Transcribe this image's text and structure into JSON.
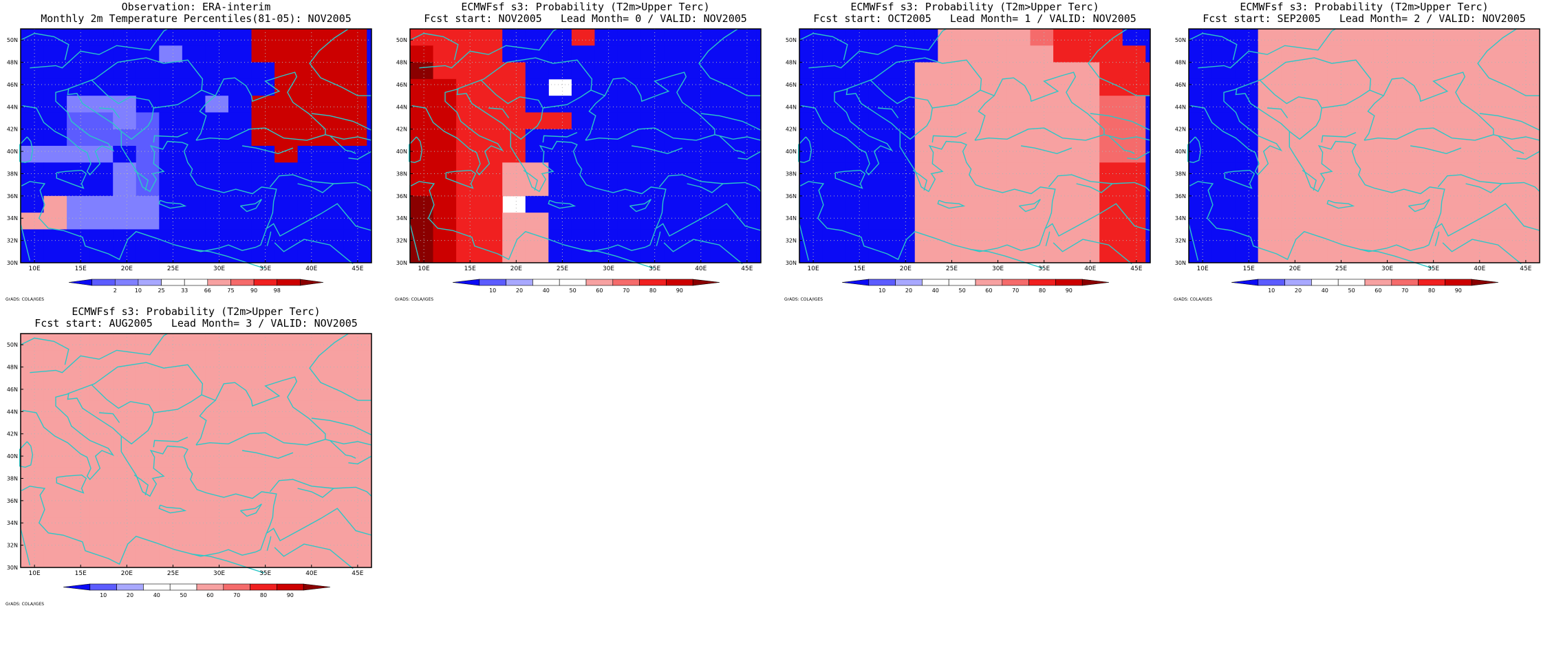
{
  "colors": {
    "coast": "#2cc7c7",
    "frame": "#000000",
    "grid": "#b5b5b5",
    "prob_palette": [
      "#0b0bf5",
      "#5c5cff",
      "#a8a8ff",
      "#ffffff",
      "#ffffff",
      "#f7a1a1",
      "#f56b6b",
      "#f02020",
      "#cc0000",
      "#8a0000"
    ],
    "obs_palette": [
      "#0b0bf5",
      "#5c5cff",
      "#8080ff",
      "#a8a8ff",
      "#ffffff",
      "#ffffff",
      "#f7a1a1",
      "#f56b6b",
      "#f02020",
      "#cc0000",
      "#8a0000"
    ]
  },
  "credit": "GrADS: COLA/IGES",
  "map": {
    "x_ticks": [
      "10E",
      "15E",
      "20E",
      "25E",
      "30E",
      "35E",
      "40E",
      "45E"
    ],
    "y_ticks": [
      "30N",
      "32N",
      "34N",
      "36N",
      "38N",
      "40N",
      "42N",
      "44N",
      "46N",
      "48N",
      "50N"
    ]
  },
  "panels": [
    {
      "title1": "Observation: ERA-interim",
      "title2": "Monthly 2m Temperature Percentiles(81-05): NOV2005",
      "palette": "obs",
      "colorbar_labels": [
        "2",
        "10",
        "25",
        "33",
        "66",
        "75",
        "90",
        "98"
      ]
    },
    {
      "title1": "ECMWFsf s3: Probability (T2m>Upper Terc)",
      "title2": "Fcst start: NOV2005   Lead Month= 0 / VALID: NOV2005",
      "palette": "prob",
      "colorbar_labels": [
        "10",
        "20",
        "40",
        "50",
        "60",
        "70",
        "80",
        "90"
      ]
    },
    {
      "title1": "ECMWFsf s3: Probability (T2m>Upper Terc)",
      "title2": "Fcst start: OCT2005   Lead Month= 1 / VALID: NOV2005",
      "palette": "prob",
      "colorbar_labels": [
        "10",
        "20",
        "40",
        "50",
        "60",
        "70",
        "80",
        "90"
      ]
    },
    {
      "title1": "ECMWFsf s3: Probability (T2m>Upper Terc)",
      "title2": "Fcst start: SEP2005   Lead Month= 2 / VALID: NOV2005",
      "palette": "prob",
      "colorbar_labels": [
        "10",
        "20",
        "40",
        "50",
        "60",
        "70",
        "80",
        "90"
      ]
    },
    {
      "title1": "ECMWFsf s3: Probability (T2m>Upper Terc)",
      "title2": "Fcst start: AUG2005   Lead Month= 3 / VALID: NOV2005",
      "palette": "prob",
      "colorbar_labels": [
        "10",
        "20",
        "40",
        "50",
        "60",
        "70",
        "80",
        "90"
      ]
    }
  ],
  "chart_data": [
    {
      "type": "heatmap",
      "x_range_deg": [
        8.5,
        46.5
      ],
      "y_range_deg": [
        30,
        51
      ],
      "grid_step_deg": 2.5,
      "cell_classes": [
        "0000000000999990",
        "0000002000999990",
        "0000000000099990",
        "0000000000099990",
        "0022200020999990",
        "0011210000999990",
        "0011110000999990",
        "2222010000090000",
        "0000210000000000",
        "0000210000000000",
        "0622220000000000",
        "6622220000000000",
        "0000000000000000",
        "0000000000000000"
      ]
    },
    {
      "type": "heatmap",
      "x_range_deg": [
        8.5,
        46.5
      ],
      "y_range_deg": [
        30,
        51
      ],
      "grid_step_deg": 2.5,
      "cell_classes": [
        "7777000700000000",
        "8777000000000000",
        "9777700000000000",
        "8877703000000000",
        "8877700000000000",
        "8877777000000000",
        "8877700000000000",
        "8877700000000000",
        "8877550000000000",
        "8877550000000000",
        "9877300000000000",
        "9877550000000000",
        "9877550000000000",
        "9877550000000000"
      ]
    },
    {
      "type": "heatmap",
      "x_range_deg": [
        8.5,
        46.5
      ],
      "y_range_deg": [
        30,
        51
      ],
      "grid_step_deg": 2.5,
      "cell_classes": [
        "0000005555677700",
        "0000005555577770",
        "0000055555555777",
        "0000055555555777",
        "0000055555555660",
        "0000055555555660",
        "0000055555555660",
        "0000055555555660",
        "0000055555555770",
        "0000055555555770",
        "0000055555555770",
        "0000055555555770",
        "0000055555555770",
        "0000055555555770"
      ]
    },
    {
      "type": "heatmap",
      "x_range_deg": [
        8.5,
        46.5
      ],
      "y_range_deg": [
        30,
        51
      ],
      "grid_step_deg": 2.5,
      "cell_classes": [
        "0005555555555555",
        "0005555555555555",
        "0005555555555555",
        "0005555555555555",
        "0005555555555555",
        "0005555555555555",
        "0005555555555555",
        "0005555555555555",
        "0005555555555555",
        "0005555555555555",
        "0005555555555555",
        "0005555555555555",
        "0005555555555555",
        "0005555555555555"
      ]
    },
    {
      "type": "heatmap",
      "x_range_deg": [
        8.5,
        46.5
      ],
      "y_range_deg": [
        30,
        51
      ],
      "grid_step_deg": 2.5,
      "cell_classes": [
        "5555555555555555",
        "5555555555555555",
        "5555555555555555",
        "5555555555555555",
        "5555555555555555",
        "5555555555555555",
        "5555555555555555",
        "5555555555555555",
        "5555555555555555",
        "5555555555555555",
        "5555555555555555",
        "5555555555555555",
        "5555555555555555",
        "5555555555555555"
      ]
    }
  ]
}
